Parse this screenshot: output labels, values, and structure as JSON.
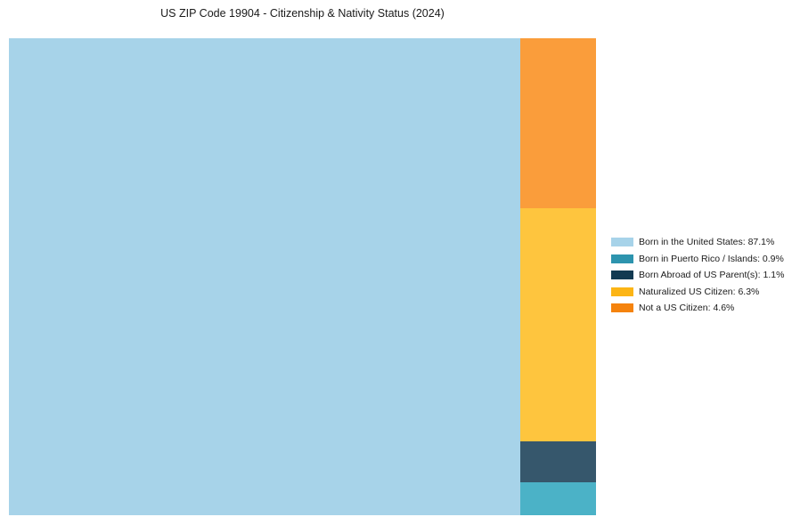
{
  "page": {
    "background_color": "#ffffff"
  },
  "chart_data": {
    "type": "treemap",
    "title": "US ZIP Code 19904 - Citizenship & Nativity Status (2024)",
    "categories": [
      "Born in the United States",
      "Born in Puerto Rico / Islands",
      "Born Abroad of US Parent(s)",
      "Naturalized US Citizen",
      "Not a US Citizen"
    ],
    "values": [
      87.1,
      0.9,
      1.1,
      6.3,
      4.6
    ],
    "unit": "%",
    "block_colors": [
      "#A7D3E9",
      "#4BB2C7",
      "#36576C",
      "#FEC53E",
      "#FA9D3B"
    ],
    "legend_colors": [
      "#A7D3E9",
      "#2D94AE",
      "#123A52",
      "#FCB515",
      "#F5830D"
    ],
    "legend": {
      "position": "right",
      "entries": [
        "Born in the United States: 87.1%",
        "Born in Puerto Rico / Islands: 0.9%",
        "Born Abroad of US Parent(s): 1.1%",
        "Naturalized US Citizen: 6.3%",
        "Not a US Citizen: 4.6%"
      ]
    },
    "layout": {
      "first_slice_index": 0,
      "column_stack_top_to_bottom": [
        4,
        3,
        2,
        1
      ],
      "grid": false,
      "axes": false
    }
  }
}
